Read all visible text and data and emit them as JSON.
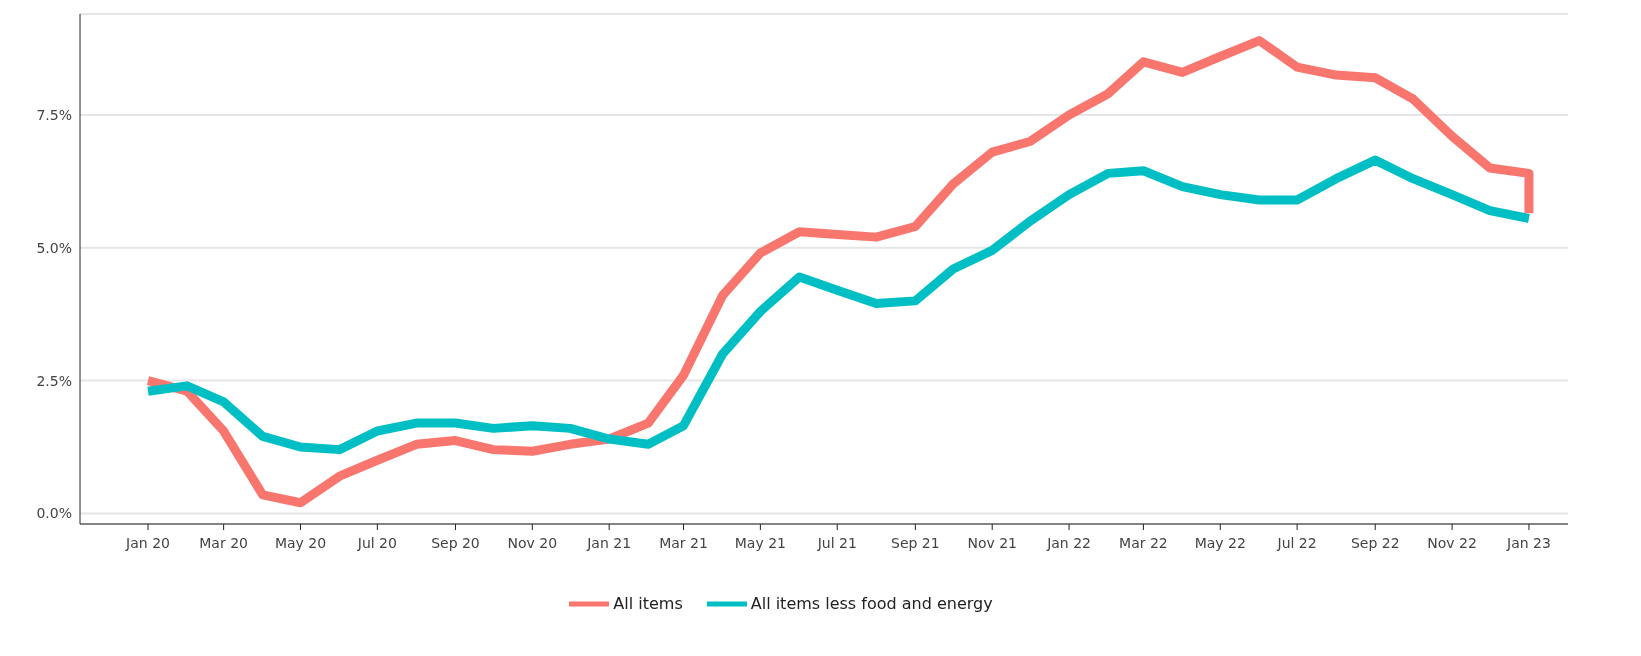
{
  "chart_data": {
    "type": "line",
    "x": [
      "2020-01",
      "2020-02",
      "2020-03",
      "2020-04",
      "2020-05",
      "2020-06",
      "2020-07",
      "2020-08",
      "2020-09",
      "2020-10",
      "2020-11",
      "2020-12",
      "2021-01",
      "2021-02",
      "2021-03",
      "2021-04",
      "2021-05",
      "2021-06",
      "2021-07",
      "2021-08",
      "2021-09",
      "2021-10",
      "2021-11",
      "2021-12",
      "2022-01",
      "2022-02",
      "2022-03",
      "2022-04",
      "2022-05",
      "2022-06",
      "2022-07",
      "2022-08",
      "2022-09",
      "2022-10",
      "2022-11",
      "2022-12",
      "2023-01"
    ],
    "series": [
      {
        "name": "All items",
        "color": "#f8766d",
        "x": [
          "2020-01",
          "2020-02",
          "2020-03",
          "2020-04",
          "2020-05",
          "2020-06",
          "2020-07",
          "2020-08",
          "2020-09",
          "2020-10",
          "2020-11",
          "2020-12",
          "2021-01",
          "2021-02",
          "2021-03",
          "2021-04",
          "2021-05",
          "2021-06",
          "2021-07",
          "2021-08",
          "2021-09",
          "2021-10",
          "2021-11",
          "2021-12",
          "2022-01",
          "2022-02",
          "2022-03",
          "2022-04",
          "2022-05",
          "2022-06",
          "2022-07",
          "2022-08",
          "2022-09",
          "2022-10",
          "2022-11",
          "2022-12",
          "2023-01",
          "2023-01"
        ],
        "values": [
          2.5,
          2.3,
          1.55,
          0.35,
          0.2,
          0.7,
          1.0,
          1.3,
          1.37,
          1.2,
          1.17,
          1.3,
          1.4,
          1.7,
          2.6,
          4.1,
          4.9,
          5.3,
          5.25,
          5.2,
          5.4,
          6.2,
          6.8,
          7.0,
          7.5,
          7.9,
          8.5,
          8.3,
          8.6,
          8.9,
          8.4,
          8.25,
          8.2,
          7.8,
          7.1,
          6.5,
          6.4,
          5.65
        ]
      },
      {
        "name": "All items less food and energy",
        "color": "#00bfc4",
        "values": [
          2.3,
          2.4,
          2.1,
          1.45,
          1.25,
          1.2,
          1.55,
          1.7,
          1.7,
          1.6,
          1.65,
          1.6,
          1.4,
          1.3,
          1.65,
          3.0,
          3.8,
          4.45,
          4.2,
          3.95,
          4.0,
          4.6,
          4.95,
          5.5,
          6.0,
          6.4,
          6.45,
          6.15,
          6.0,
          5.9,
          5.9,
          6.3,
          6.65,
          6.3,
          6.0,
          5.7,
          5.55
        ]
      }
    ],
    "xlim": [
      "2019-11-08",
      "2023-02-01"
    ],
    "xticks": [
      {
        "value": "2020-01",
        "label": "Jan 20"
      },
      {
        "value": "2020-03",
        "label": "Mar 20"
      },
      {
        "value": "2020-05",
        "label": "May 20"
      },
      {
        "value": "2020-07",
        "label": "Jul 20"
      },
      {
        "value": "2020-09",
        "label": "Sep 20"
      },
      {
        "value": "2020-11",
        "label": "Nov 20"
      },
      {
        "value": "2021-01",
        "label": "Jan 21"
      },
      {
        "value": "2021-03",
        "label": "Mar 21"
      },
      {
        "value": "2021-05",
        "label": "May 21"
      },
      {
        "value": "2021-07",
        "label": "Jul 21"
      },
      {
        "value": "2021-09",
        "label": "Sep 21"
      },
      {
        "value": "2021-11",
        "label": "Nov 21"
      },
      {
        "value": "2022-01",
        "label": "Jan 22"
      },
      {
        "value": "2022-03",
        "label": "Mar 22"
      },
      {
        "value": "2022-05",
        "label": "May 22"
      },
      {
        "value": "2022-07",
        "label": "Jul 22"
      },
      {
        "value": "2022-09",
        "label": "Sep 22"
      },
      {
        "value": "2022-11",
        "label": "Nov 22"
      },
      {
        "value": "2023-01",
        "label": "Jan 23"
      }
    ],
    "ylim": [
      -0.2,
      9.4
    ],
    "yticks": [
      {
        "value": 0,
        "label": "0.0%"
      },
      {
        "value": 2.5,
        "label": "2.5%"
      },
      {
        "value": 5,
        "label": "5.0%"
      },
      {
        "value": 7.5,
        "label": "7.5%"
      }
    ],
    "grid": "y",
    "legend": "bottom",
    "marker": "none",
    "line_style": "solid"
  }
}
